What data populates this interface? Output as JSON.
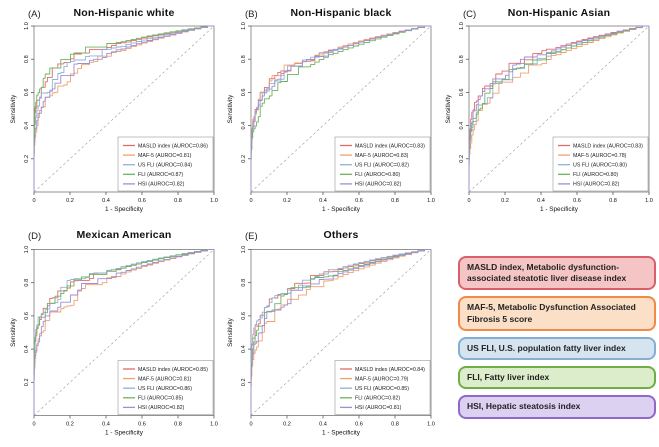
{
  "axis_shared": {
    "xlabel": "1 - Specificity",
    "ylabel": "Sensitivity",
    "xticks": [
      "0",
      "0.2",
      "0.4",
      "0.6",
      "0.8",
      "1.0"
    ],
    "yticks": [
      "0.2",
      "0.4",
      "0.6",
      "0.8",
      "1.0"
    ]
  },
  "chart_data": [
    {
      "type": "line",
      "subtype": "roc",
      "panel": "(A)",
      "title": "Non-Hispanic white",
      "xlabel": "1 - Specificity",
      "ylabel": "Sensitivity",
      "xlim": [
        0,
        1
      ],
      "ylim": [
        0,
        1
      ],
      "grid": false,
      "diagonal_reference": true,
      "legend_position": "bottom-right",
      "series": [
        {
          "name": "MASLD index",
          "auroc": 0.86,
          "color": "#e26a6a",
          "label": "MASLD index (AUROC=0.86)"
        },
        {
          "name": "MAF-5",
          "auroc": 0.81,
          "color": "#f2a06e",
          "label": "MAF-5 (AUROC=0.81)"
        },
        {
          "name": "US FLI",
          "auroc": 0.84,
          "color": "#8fb2d9",
          "label": "US FLI (AUROC=0.84)"
        },
        {
          "name": "FLI",
          "auroc": 0.87,
          "color": "#6db35f",
          "label": "FLI (AUROC=0.87)"
        },
        {
          "name": "HSI",
          "auroc": 0.82,
          "color": "#9d8ed6",
          "label": "HSI (AUROC=0.82)"
        }
      ]
    },
    {
      "type": "line",
      "subtype": "roc",
      "panel": "(B)",
      "title": "Non-Hispanic black",
      "xlabel": "1 - Specificity",
      "ylabel": "Sensitivity",
      "xlim": [
        0,
        1
      ],
      "ylim": [
        0,
        1
      ],
      "grid": false,
      "diagonal_reference": true,
      "legend_position": "bottom-right",
      "series": [
        {
          "name": "MASLD index",
          "auroc": 0.83,
          "color": "#e26a6a",
          "label": "MASLD index (AUROC=0.83)"
        },
        {
          "name": "MAF-5",
          "auroc": 0.83,
          "color": "#f2a06e",
          "label": "MAF-5 (AUROC=0.83)"
        },
        {
          "name": "US FLI",
          "auroc": 0.82,
          "color": "#8fb2d9",
          "label": "US FLI (AUROC=0.82)"
        },
        {
          "name": "FLI",
          "auroc": 0.8,
          "color": "#6db35f",
          "label": "FLI (AUROC=0.80)"
        },
        {
          "name": "HSI",
          "auroc": 0.82,
          "color": "#9d8ed6",
          "label": "HSI (AUROC=0.82)"
        }
      ]
    },
    {
      "type": "line",
      "subtype": "roc",
      "panel": "(C)",
      "title": "Non-Hispanic Asian",
      "xlabel": "1 - Specificity",
      "ylabel": "Sensitivity",
      "xlim": [
        0,
        1
      ],
      "ylim": [
        0,
        1
      ],
      "grid": false,
      "diagonal_reference": true,
      "legend_position": "bottom-right",
      "series": [
        {
          "name": "MASLD index",
          "auroc": 0.83,
          "color": "#e26a6a",
          "label": "MASLD index (AUROC=0.83)"
        },
        {
          "name": "MAF-5",
          "auroc": 0.78,
          "color": "#f2a06e",
          "label": "MAF-5 (AUROC=0.78)"
        },
        {
          "name": "US FLI",
          "auroc": 0.8,
          "color": "#8fb2d9",
          "label": "US FLI (AUROC=0.80)"
        },
        {
          "name": "FLI",
          "auroc": 0.8,
          "color": "#6db35f",
          "label": "FLI (AUROC=0.80)"
        },
        {
          "name": "HSI",
          "auroc": 0.82,
          "color": "#9d8ed6",
          "label": "HSI (AUROC=0.82)"
        }
      ]
    },
    {
      "type": "line",
      "subtype": "roc",
      "panel": "(D)",
      "title": "Mexican American",
      "xlabel": "1 - Specificity",
      "ylabel": "Sensitivity",
      "xlim": [
        0,
        1
      ],
      "ylim": [
        0,
        1
      ],
      "grid": false,
      "diagonal_reference": true,
      "legend_position": "bottom-right",
      "series": [
        {
          "name": "MASLD index",
          "auroc": 0.85,
          "color": "#e26a6a",
          "label": "MASLD index (AUROC=0.85)"
        },
        {
          "name": "MAF-5",
          "auroc": 0.81,
          "color": "#f2a06e",
          "label": "MAF-5 (AUROC=0.81)"
        },
        {
          "name": "US FLI",
          "auroc": 0.86,
          "color": "#8fb2d9",
          "label": "US FLI (AUROC=0.86)"
        },
        {
          "name": "FLI",
          "auroc": 0.85,
          "color": "#6db35f",
          "label": "FLI (AUROC=0.85)"
        },
        {
          "name": "HSI",
          "auroc": 0.82,
          "color": "#9d8ed6",
          "label": "HSI (AUROC=0.82)"
        }
      ]
    },
    {
      "type": "line",
      "subtype": "roc",
      "panel": "(E)",
      "title": "Others",
      "xlabel": "1 - Specificity",
      "ylabel": "Sensitivity",
      "xlim": [
        0,
        1
      ],
      "ylim": [
        0,
        1
      ],
      "grid": false,
      "diagonal_reference": true,
      "legend_position": "bottom-right",
      "series": [
        {
          "name": "MASLD index",
          "auroc": 0.84,
          "color": "#e26a6a",
          "label": "MASLD index (AUROC=0.84)"
        },
        {
          "name": "MAF-5",
          "auroc": 0.79,
          "color": "#f2a06e",
          "label": "MAF-5 (AUROC=0.79)"
        },
        {
          "name": "US FLI",
          "auroc": 0.85,
          "color": "#8fb2d9",
          "label": "US FLI (AUROC=0.85)"
        },
        {
          "name": "FLI",
          "auroc": 0.82,
          "color": "#6db35f",
          "label": "FLI (AUROC=0.82)"
        },
        {
          "name": "HSI",
          "auroc": 0.81,
          "color": "#9d8ed6",
          "label": "HSI (AUROC=0.81)"
        }
      ]
    }
  ],
  "abbreviation_key": {
    "boxes": [
      {
        "text": "MASLD index, Metabolic dysfunction-associated steatotic liver disease index",
        "fill": "#f5c5c5",
        "border": "#d9606a"
      },
      {
        "text": "MAF-5, Metabolic Dysfunction Associated Fibrosis 5 score",
        "fill": "#fcdfc7",
        "border": "#f08a46"
      },
      {
        "text": "US FLI, U.S. population fatty liver index",
        "fill": "#d6e4f0",
        "border": "#85aed1"
      },
      {
        "text": "FLI, Fatty liver index",
        "fill": "#dcedcb",
        "border": "#70ad47"
      },
      {
        "text": "HSI, Hepatic steatosis index",
        "fill": "#ddd1f2",
        "border": "#8f68c9"
      }
    ]
  }
}
